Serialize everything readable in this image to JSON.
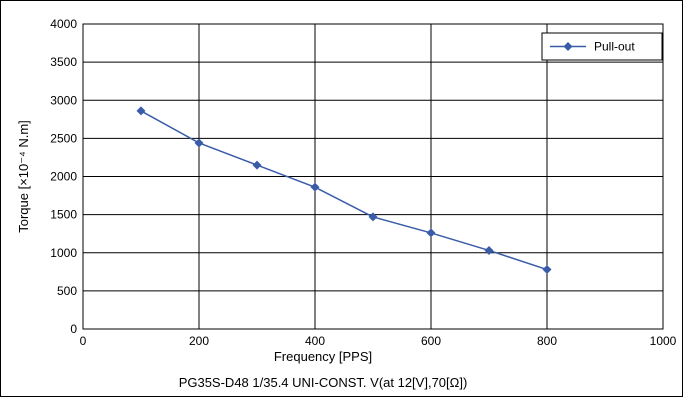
{
  "chart_data": {
    "type": "line",
    "title": "",
    "caption": "PG35S-D48 1/35.4 UNI-CONST. V(at 12[V],70[Ω])",
    "xlabel": "Frequency [PPS]",
    "ylabel": "Torque [×10⁻⁴ N.m]",
    "xlim": [
      0,
      1000
    ],
    "ylim": [
      0,
      4000
    ],
    "xticks": [
      0,
      200,
      400,
      600,
      800,
      1000
    ],
    "yticks": [
      0,
      500,
      1000,
      1500,
      2000,
      2500,
      3000,
      3500,
      4000
    ],
    "grid": true,
    "legend_position": "top-right",
    "series": [
      {
        "name": "Pull-out",
        "color": "#3a5ca8",
        "marker": "diamond",
        "x": [
          100,
          200,
          300,
          400,
          500,
          600,
          700,
          800
        ],
        "y": [
          2860,
          2440,
          2150,
          1860,
          1470,
          1260,
          1030,
          780
        ]
      }
    ]
  }
}
